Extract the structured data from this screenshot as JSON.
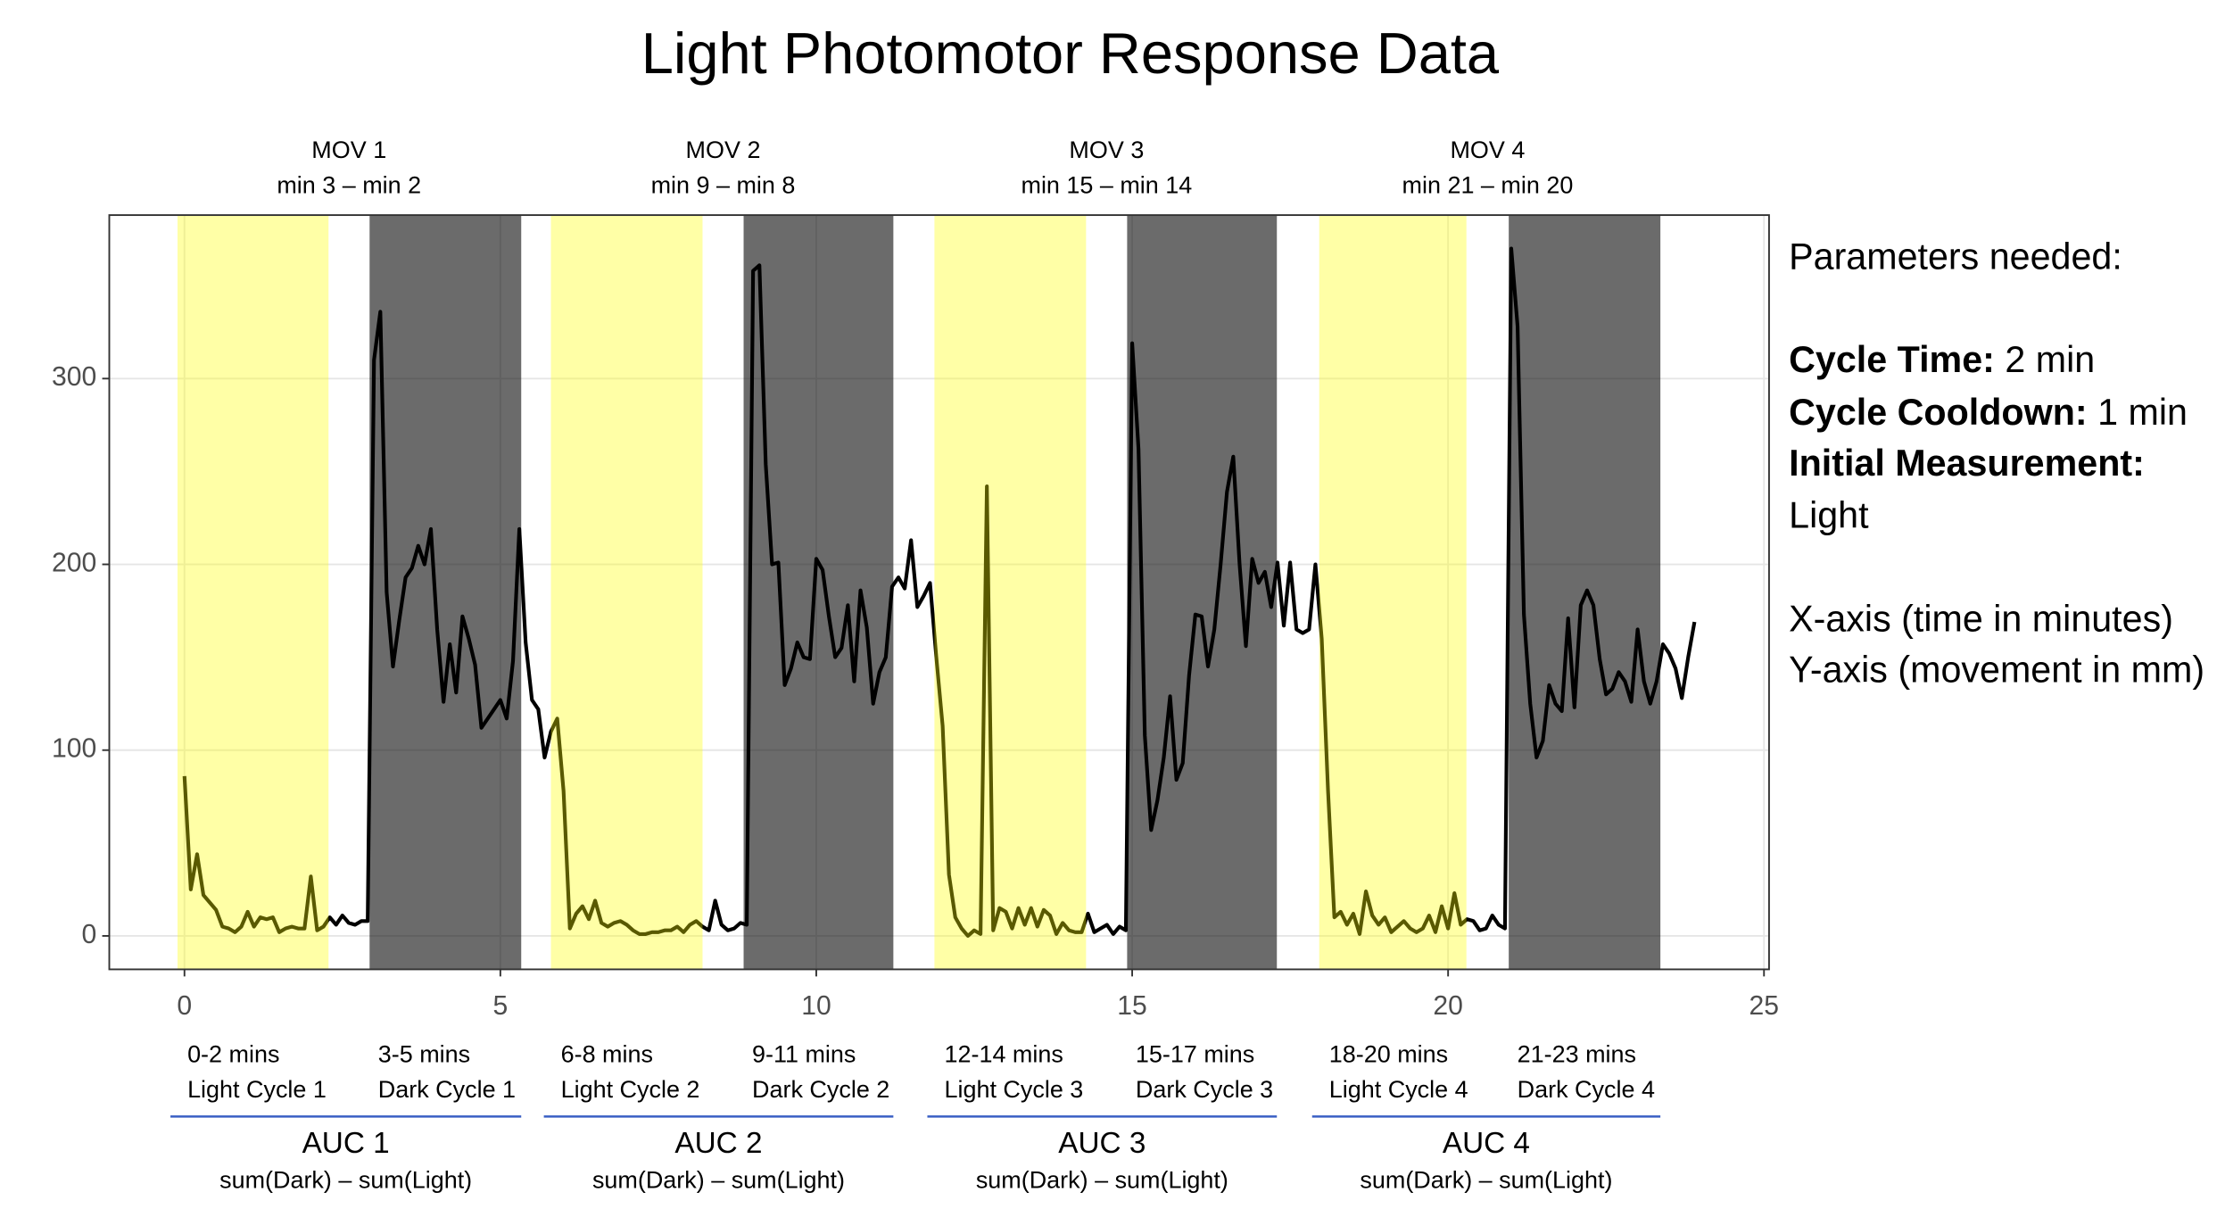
{
  "chart_data": {
    "type": "line",
    "title": "Light Photomotor Response Data",
    "x": [
      0,
      0.1,
      0.2,
      0.3,
      0.4,
      0.5,
      0.6,
      0.7,
      0.8,
      0.9,
      1,
      1.1,
      1.2,
      1.3,
      1.4,
      1.5,
      1.6,
      1.7,
      1.8,
      1.9,
      2,
      2.1,
      2.2,
      2.3,
      2.4,
      2.5,
      2.6,
      2.7,
      2.8,
      2.9,
      3,
      3.1,
      3.2,
      3.3,
      3.4,
      3.5,
      3.6,
      3.7,
      3.8,
      3.9,
      4,
      4.1,
      4.2,
      4.3,
      4.4,
      4.5,
      4.6,
      4.7,
      4.8,
      4.9,
      5,
      5.1,
      5.2,
      5.3,
      5.4,
      5.5,
      5.6,
      5.7,
      5.8,
      5.9,
      6,
      6.1,
      6.2,
      6.3,
      6.4,
      6.5,
      6.6,
      6.7,
      6.8,
      6.9,
      7,
      7.1,
      7.2,
      7.3,
      7.4,
      7.5,
      7.6,
      7.7,
      7.8,
      7.9,
      8,
      8.1,
      8.2,
      8.3,
      8.4,
      8.5,
      8.6,
      8.7,
      8.8,
      8.9,
      9,
      9.1,
      9.2,
      9.3,
      9.4,
      9.5,
      9.6,
      9.7,
      9.8,
      9.9,
      10,
      10.1,
      10.2,
      10.3,
      10.4,
      10.5,
      10.6,
      10.7,
      10.8,
      10.9,
      11,
      11.1,
      11.2,
      11.3,
      11.4,
      11.5,
      11.6,
      11.7,
      11.8,
      11.9,
      12,
      12.1,
      12.2,
      12.3,
      12.4,
      12.5,
      12.6,
      12.7,
      12.8,
      12.9,
      13,
      13.1,
      13.2,
      13.3,
      13.4,
      13.5,
      13.6,
      13.7,
      13.8,
      13.9,
      14,
      14.1,
      14.2,
      14.3,
      14.4,
      14.5,
      14.6,
      14.7,
      14.8,
      14.9,
      15,
      15.1,
      15.2,
      15.3,
      15.4,
      15.5,
      15.6,
      15.7,
      15.8,
      15.9,
      16,
      16.1,
      16.2,
      16.3,
      16.4,
      16.5,
      16.6,
      16.7,
      16.8,
      16.9,
      17,
      17.1,
      17.2,
      17.3,
      17.4,
      17.5,
      17.6,
      17.7,
      17.8,
      17.9,
      18,
      18.1,
      18.2,
      18.3,
      18.4,
      18.5,
      18.6,
      18.7,
      18.8,
      18.9,
      19,
      19.1,
      19.2,
      19.3,
      19.4,
      19.5,
      19.6,
      19.7,
      19.8,
      19.9,
      20,
      20.1,
      20.2,
      20.3,
      20.4,
      20.5,
      20.6,
      20.7,
      20.8,
      20.9,
      21,
      21.1,
      21.2,
      21.3,
      21.4,
      21.5,
      21.6,
      21.7,
      21.8,
      21.9,
      22,
      22.1,
      22.2,
      22.3,
      22.4,
      22.5,
      22.6,
      22.7,
      22.8,
      22.9,
      23,
      23.1,
      23.2,
      23.3,
      23.4,
      23.5,
      23.6,
      23.7,
      23.8,
      23.9
    ],
    "values": [
      86,
      25,
      44,
      22,
      18,
      14,
      5,
      4,
      2,
      5,
      13,
      5,
      10,
      9,
      10,
      2,
      4,
      5,
      4,
      4,
      32,
      3,
      5,
      10,
      6,
      11,
      7,
      6,
      8,
      8,
      310,
      336,
      185,
      145,
      170,
      193,
      198,
      210,
      200,
      219,
      165,
      126,
      157,
      131,
      172,
      160,
      146,
      112,
      117,
      122,
      127,
      117,
      148,
      219,
      158,
      127,
      122,
      96,
      110,
      117,
      78,
      4,
      12,
      16,
      9,
      19,
      7,
      5,
      7,
      8,
      6,
      3,
      1,
      1,
      2,
      2,
      3,
      3,
      5,
      2,
      6,
      8,
      5,
      3,
      19,
      6,
      3,
      4,
      7,
      6,
      358,
      361,
      254,
      200,
      201,
      135,
      144,
      158,
      150,
      149,
      203,
      197,
      172,
      150,
      155,
      178,
      137,
      186,
      166,
      125,
      142,
      150,
      188,
      193,
      187,
      213,
      177,
      183,
      190,
      150,
      113,
      33,
      10,
      4,
      0,
      3,
      1,
      242,
      3,
      15,
      13,
      4,
      15,
      6,
      15,
      5,
      14,
      11,
      1,
      7,
      3,
      2,
      2,
      12,
      2,
      4,
      6,
      1,
      5,
      3,
      319,
      262,
      108,
      57,
      73,
      96,
      129,
      84,
      93,
      140,
      173,
      172,
      145,
      165,
      200,
      239,
      258,
      200,
      156,
      203,
      190,
      196,
      177,
      201,
      167,
      201,
      165,
      163,
      165,
      200,
      160,
      78,
      10,
      13,
      6,
      12,
      1,
      24,
      11,
      6,
      10,
      2,
      5,
      8,
      4,
      2,
      4,
      11,
      2,
      16,
      4,
      23,
      6,
      9,
      8,
      3,
      4,
      11,
      6,
      4,
      370,
      328,
      173,
      125,
      96,
      105,
      135,
      125,
      121,
      171,
      123,
      178,
      186,
      178,
      149,
      130,
      133,
      142,
      137,
      126,
      165,
      137,
      125,
      137,
      157,
      152,
      144,
      128,
      150,
      169
    ],
    "color": "#000000",
    "xlim": [
      -1.19,
      25.08
    ],
    "ylim": [
      -18,
      388
    ],
    "xticks": [
      0,
      5,
      10,
      15,
      20,
      25
    ],
    "yticks": [
      0,
      100,
      200,
      300
    ],
    "grid": true,
    "cycles": [
      {
        "mov": "MOV 1",
        "mov_range": "min 3 – min 2",
        "light": {
          "span": [
            -0.11,
            2.28
          ],
          "color": "#ffff00",
          "label": "0-2 mins",
          "name": "Light Cycle 1"
        },
        "dark": {
          "span": [
            2.93,
            5.33
          ],
          "color": "#000000",
          "label": "3-5 mins",
          "name": "Dark Cycle 1"
        },
        "auc": "AUC 1",
        "auc_formula": "sum(Dark) – sum(Light)"
      },
      {
        "mov": "MOV 2",
        "mov_range": "min 9 – min 8",
        "light": {
          "span": [
            5.8,
            8.2
          ],
          "color": "#ffff00",
          "label": "6-8 mins",
          "name": "Light Cycle 2"
        },
        "dark": {
          "span": [
            8.85,
            11.22
          ],
          "color": "#000000",
          "label": "9-11 mins",
          "name": "Dark Cycle 2"
        },
        "auc": "AUC 2",
        "auc_formula": "sum(Dark) – sum(Light)"
      },
      {
        "mov": "MOV 3",
        "mov_range": "min 15 – min 14",
        "light": {
          "span": [
            11.87,
            14.27
          ],
          "color": "#ffff00",
          "label": "12-14 mins",
          "name": "Light Cycle 3"
        },
        "dark": {
          "span": [
            14.92,
            17.29
          ],
          "color": "#000000",
          "label": "15-17 mins",
          "name": "Dark Cycle 3"
        },
        "auc": "AUC 3",
        "auc_formula": "sum(Dark) – sum(Light)"
      },
      {
        "mov": "MOV 4",
        "mov_range": "min 21 – min 20",
        "light": {
          "span": [
            17.96,
            20.29
          ],
          "color": "#ffff00",
          "label": "18-20 mins",
          "name": "Light Cycle 4"
        },
        "dark": {
          "span": [
            20.96,
            23.36
          ],
          "color": "#000000",
          "label": "21-23 mins",
          "name": "Dark Cycle 4"
        },
        "auc": "AUC 4",
        "auc_formula": "sum(Dark) – sum(Light)"
      }
    ]
  },
  "panel": {
    "heading": "Parameters needed:",
    "items": [
      {
        "label": "Cycle Time:",
        "value": "2 min"
      },
      {
        "label": "Cycle Cooldown:",
        "value": "1 min"
      },
      {
        "label": "Initial Measurement:",
        "value": "Light"
      }
    ],
    "notes": [
      "X-axis (time in minutes)",
      "Y-axis (movement in mm)"
    ]
  }
}
